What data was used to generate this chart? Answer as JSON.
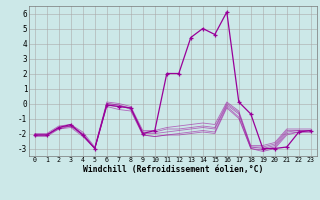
{
  "xlabel": "Windchill (Refroidissement éolien,°C)",
  "xlim": [
    -0.5,
    23.5
  ],
  "ylim": [
    -3.5,
    6.5
  ],
  "yticks": [
    -3,
    -2,
    -1,
    0,
    1,
    2,
    3,
    4,
    5,
    6
  ],
  "xticks": [
    0,
    1,
    2,
    3,
    4,
    5,
    6,
    7,
    8,
    9,
    10,
    11,
    12,
    13,
    14,
    15,
    16,
    17,
    18,
    19,
    20,
    21,
    22,
    23
  ],
  "background_color": "#cce8e8",
  "grid_color": "#aaaaaa",
  "line_color": "#990099",
  "secondary_series": [
    {
      "x": [
        0,
        1,
        2,
        3,
        4,
        5,
        6,
        7,
        8,
        9,
        10,
        11,
        12,
        13,
        14,
        15,
        16,
        17,
        18,
        19,
        20,
        21,
        22,
        23
      ],
      "y": [
        -2.1,
        -2.1,
        -1.6,
        -1.5,
        -2.1,
        -3.0,
        -0.1,
        -0.2,
        -0.3,
        -2.0,
        -2.0,
        -1.9,
        -1.8,
        -1.7,
        -1.6,
        -1.7,
        -0.1,
        -0.7,
        -2.9,
        -3.0,
        -2.8,
        -1.9,
        -1.8,
        -1.8
      ]
    },
    {
      "x": [
        0,
        1,
        2,
        3,
        4,
        5,
        6,
        7,
        8,
        9,
        10,
        11,
        12,
        13,
        14,
        15,
        16,
        17,
        18,
        19,
        20,
        21,
        22,
        23
      ],
      "y": [
        -2.1,
        -2.1,
        -1.7,
        -1.5,
        -2.1,
        -3.0,
        -0.2,
        -0.4,
        -0.5,
        -2.1,
        -2.2,
        -2.1,
        -2.0,
        -1.9,
        -1.8,
        -1.9,
        -0.2,
        -0.9,
        -3.0,
        -3.1,
        -2.9,
        -2.0,
        -1.9,
        -1.9
      ]
    },
    {
      "x": [
        0,
        1,
        2,
        3,
        4,
        5,
        6,
        7,
        8,
        9,
        10,
        11,
        12,
        13,
        14,
        15,
        16,
        17,
        18,
        19,
        20,
        21,
        22,
        23
      ],
      "y": [
        -2.2,
        -2.2,
        -1.7,
        -1.6,
        -2.2,
        -3.0,
        0.0,
        -0.1,
        -0.4,
        -2.1,
        -2.2,
        -2.1,
        -2.1,
        -2.0,
        -1.9,
        -2.0,
        -0.3,
        -1.0,
        -3.0,
        -3.2,
        -3.0,
        -2.1,
        -1.9,
        -1.9
      ]
    },
    {
      "x": [
        0,
        1,
        2,
        3,
        4,
        5,
        6,
        7,
        8,
        9,
        10,
        11,
        12,
        13,
        14,
        15,
        16,
        17,
        18,
        19,
        20,
        21,
        22,
        23
      ],
      "y": [
        -2.1,
        -2.1,
        -1.6,
        -1.5,
        -2.0,
        -3.0,
        0.0,
        -0.1,
        -0.3,
        -1.9,
        -1.9,
        -1.7,
        -1.7,
        -1.6,
        -1.5,
        -1.6,
        0.0,
        -0.6,
        -2.9,
        -2.9,
        -2.7,
        -1.8,
        -1.8,
        -1.8
      ]
    },
    {
      "x": [
        0,
        1,
        2,
        3,
        4,
        5,
        6,
        7,
        8,
        9,
        10,
        11,
        12,
        13,
        14,
        15,
        16,
        17,
        18,
        19,
        20,
        21,
        22,
        23
      ],
      "y": [
        -2.0,
        -2.0,
        -1.5,
        -1.4,
        -1.9,
        -2.9,
        0.1,
        0.0,
        -0.2,
        -1.8,
        -1.8,
        -1.6,
        -1.5,
        -1.4,
        -1.3,
        -1.4,
        0.1,
        -0.5,
        -2.8,
        -2.8,
        -2.6,
        -1.7,
        -1.7,
        -1.7
      ]
    }
  ],
  "main_series": {
    "x": [
      0,
      1,
      2,
      3,
      4,
      5,
      6,
      7,
      8,
      9,
      10,
      11,
      12,
      13,
      14,
      15,
      16,
      17,
      18,
      19,
      20,
      21,
      22,
      23
    ],
    "y": [
      -2.1,
      -2.1,
      -1.6,
      -1.4,
      -2.1,
      -3.0,
      -0.1,
      -0.2,
      -0.3,
      -2.0,
      -1.8,
      2.0,
      2.0,
      4.4,
      5.0,
      4.6,
      6.1,
      0.1,
      -0.7,
      -3.0,
      -3.0,
      -2.9,
      -1.9,
      -1.8
    ]
  }
}
